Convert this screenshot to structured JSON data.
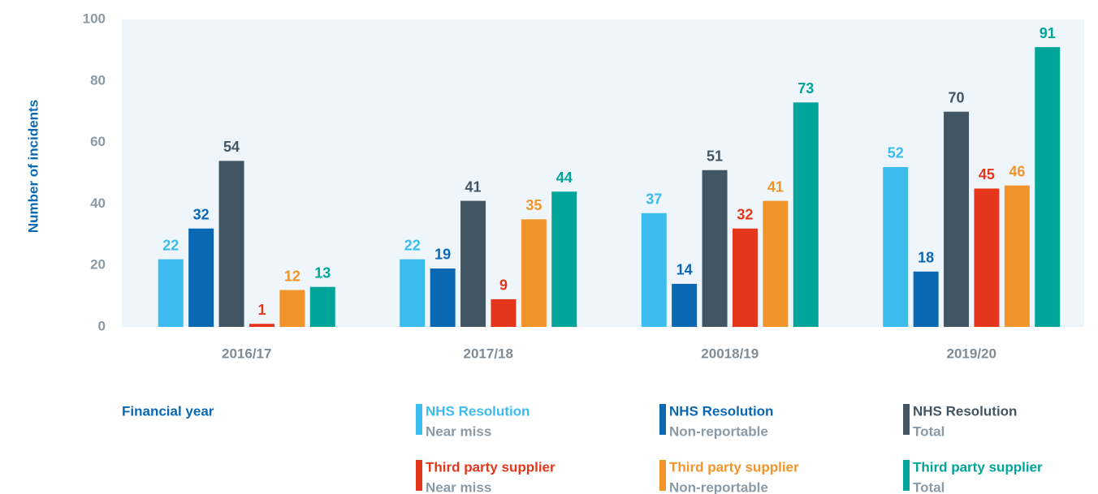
{
  "chart_data": {
    "type": "bar",
    "y_label": "Number of incidents",
    "x_label": "Financial year",
    "categories": [
      "2016/17",
      "2017/18",
      "20018/19",
      "2019/20"
    ],
    "ylim": [
      0,
      100
    ],
    "yticks": [
      0,
      20,
      40,
      60,
      80,
      100
    ],
    "series": [
      {
        "group": "NHS Resolution",
        "name": "Near miss",
        "color": "#3cbcee",
        "values": [
          22,
          22,
          37,
          52
        ]
      },
      {
        "group": "NHS Resolution",
        "name": "Non-reportable",
        "color": "#0a67b2",
        "values": [
          32,
          19,
          14,
          18
        ]
      },
      {
        "group": "NHS Resolution",
        "name": "Total",
        "color": "#425563",
        "values": [
          54,
          41,
          51,
          70
        ]
      },
      {
        "group": "Third party supplier",
        "name": "Near miss",
        "color": "#e4361b",
        "values": [
          1,
          9,
          32,
          45
        ]
      },
      {
        "group": "Third party supplier",
        "name": "Non-reportable",
        "color": "#f1952b",
        "values": [
          12,
          35,
          41,
          46
        ]
      },
      {
        "group": "Third party supplier",
        "name": "Total",
        "color": "#00a499",
        "values": [
          13,
          44,
          73,
          91
        ]
      }
    ]
  }
}
